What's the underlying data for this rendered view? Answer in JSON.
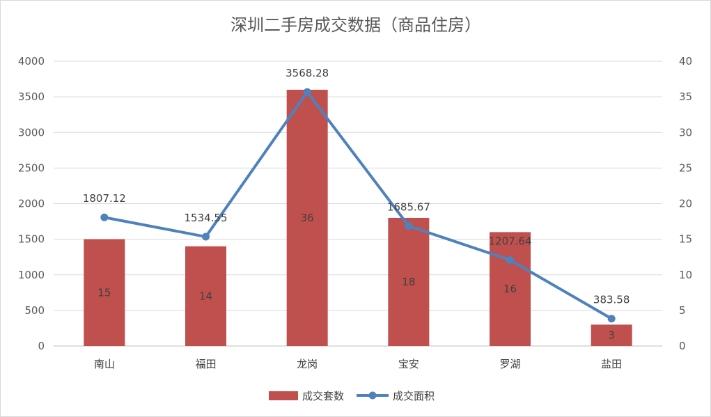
{
  "chart_data": {
    "type": "bar",
    "title": "深圳二手房成交数据（商品住房）",
    "categories": [
      "南山",
      "福田",
      "龙岗",
      "宝安",
      "罗湖",
      "盐田"
    ],
    "series": [
      {
        "name": "成交套数",
        "type": "bar",
        "axis": "left",
        "values": [
          1500,
          1400,
          3600,
          1800,
          1600,
          300
        ],
        "labels": [
          "15",
          "14",
          "36",
          "18",
          "16",
          "3"
        ],
        "color": "#c0504d"
      },
      {
        "name": "成交面积",
        "type": "line",
        "axis": "right",
        "values": [
          18.07,
          15.35,
          35.68,
          16.86,
          12.08,
          3.84
        ],
        "labels": [
          "1807.12",
          "1534.55",
          "3568.28",
          "1685.67",
          "1207.64",
          "383.58"
        ],
        "color": "#4f81bd"
      }
    ],
    "y_left": {
      "min": 0,
      "max": 4000,
      "step": 500
    },
    "y_right": {
      "min": 0,
      "max": 40,
      "step": 5
    },
    "grid": true,
    "legend": "bottom"
  }
}
